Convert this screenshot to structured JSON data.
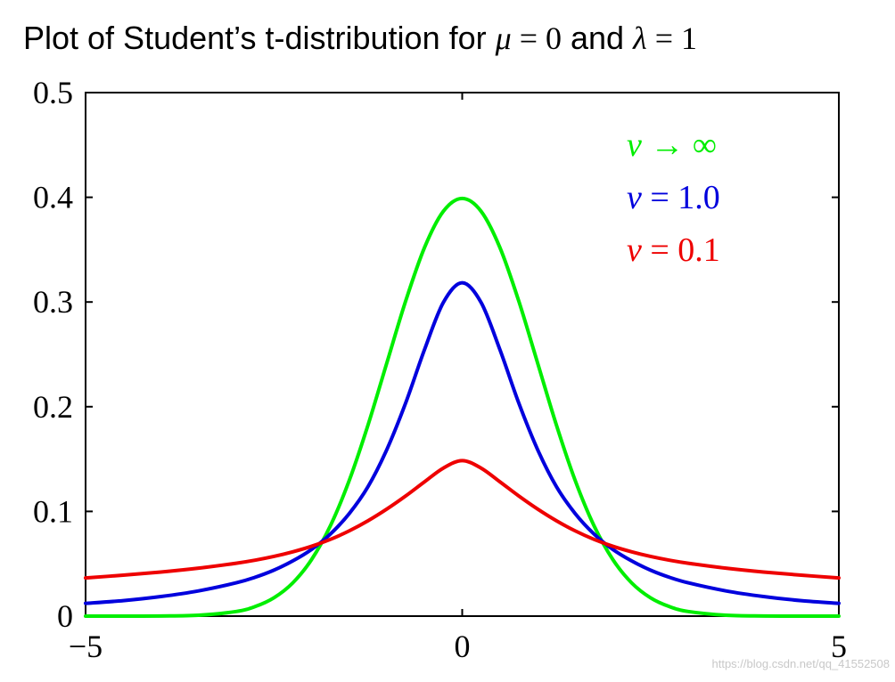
{
  "chart_data": {
    "type": "line",
    "title": {
      "prefix": "Plot of Student’s t-distribution for ",
      "mu_symbol": "μ",
      "mu_eq": " = 0",
      "conj": " and ",
      "lambda_symbol": "λ",
      "lambda_eq": " = 1"
    },
    "xlabel": "",
    "ylabel": "",
    "xlim": [
      -5,
      5
    ],
    "ylim": [
      0,
      0.5
    ],
    "x_ticks": [
      {
        "value": -5,
        "label": "−5"
      },
      {
        "value": 0,
        "label": "0"
      },
      {
        "value": 5,
        "label": "5"
      }
    ],
    "y_ticks": [
      {
        "value": 0,
        "label": "0"
      },
      {
        "value": 0.1,
        "label": "0.1"
      },
      {
        "value": 0.2,
        "label": "0.2"
      },
      {
        "value": 0.3,
        "label": "0.3"
      },
      {
        "value": 0.4,
        "label": "0.4"
      },
      {
        "value": 0.5,
        "label": "0.5"
      }
    ],
    "grid": false,
    "legend_position": "top-right",
    "series": [
      {
        "name": "ν → ∞",
        "legend_symbol": "ν",
        "legend_rest": " → ∞",
        "color": "#00ee00",
        "x": [
          -5,
          -4.5,
          -4,
          -3.5,
          -3,
          -2.75,
          -2.5,
          -2.25,
          -2,
          -1.75,
          -1.5,
          -1.25,
          -1,
          -0.75,
          -0.5,
          -0.25,
          0,
          0.25,
          0.5,
          0.75,
          1,
          1.25,
          1.5,
          1.75,
          2,
          2.25,
          2.5,
          2.75,
          3,
          3.5,
          4,
          4.5,
          5
        ],
        "y": [
          1.5e-06,
          1.6e-05,
          0.000134,
          0.00087,
          0.0044,
          0.0091,
          0.0175,
          0.0317,
          0.054,
          0.0863,
          0.1295,
          0.1826,
          0.242,
          0.3011,
          0.3521,
          0.3867,
          0.3989,
          0.3867,
          0.3521,
          0.3011,
          0.242,
          0.1826,
          0.1295,
          0.0863,
          0.054,
          0.0317,
          0.0175,
          0.0091,
          0.0044,
          0.00087,
          0.000134,
          1.6e-05,
          1.5e-06
        ]
      },
      {
        "name": "ν = 1.0",
        "legend_symbol": "ν",
        "legend_rest": " = 1.0",
        "color": "#0000dd",
        "x": [
          -5,
          -4.5,
          -4,
          -3.5,
          -3,
          -2.75,
          -2.5,
          -2.25,
          -2,
          -1.75,
          -1.5,
          -1.25,
          -1,
          -0.75,
          -0.5,
          -0.25,
          0,
          0.25,
          0.5,
          0.75,
          1,
          1.25,
          1.5,
          1.75,
          2,
          2.25,
          2.5,
          2.75,
          3,
          3.5,
          4,
          4.5,
          5
        ],
        "y": [
          0.0122,
          0.0148,
          0.0187,
          0.0241,
          0.0318,
          0.0371,
          0.0439,
          0.0527,
          0.0637,
          0.0784,
          0.0979,
          0.1237,
          0.1592,
          0.2037,
          0.2546,
          0.2996,
          0.3183,
          0.2996,
          0.2546,
          0.2037,
          0.1592,
          0.1237,
          0.0979,
          0.0784,
          0.0637,
          0.0527,
          0.0439,
          0.0371,
          0.0318,
          0.0241,
          0.0187,
          0.0148,
          0.0122
        ]
      },
      {
        "name": "ν = 0.1",
        "legend_symbol": "ν",
        "legend_rest": " = 0.1",
        "color": "#ee0000",
        "x": [
          -5,
          -4.5,
          -4,
          -3.5,
          -3,
          -2.75,
          -2.5,
          -2.25,
          -2,
          -1.75,
          -1.5,
          -1.25,
          -1,
          -0.75,
          -0.5,
          -0.25,
          0,
          0.25,
          0.5,
          0.75,
          1,
          1.25,
          1.5,
          1.75,
          2,
          2.25,
          2.5,
          2.75,
          3,
          3.5,
          4,
          4.5,
          5
        ],
        "y": [
          0.0365,
          0.0391,
          0.0421,
          0.0458,
          0.0505,
          0.0534,
          0.057,
          0.0614,
          0.0667,
          0.0733,
          0.0814,
          0.0911,
          0.1023,
          0.1148,
          0.1283,
          0.1414,
          0.1485,
          0.1414,
          0.1283,
          0.1148,
          0.1023,
          0.0911,
          0.0814,
          0.0733,
          0.0667,
          0.0614,
          0.057,
          0.0534,
          0.0505,
          0.0458,
          0.0421,
          0.0391,
          0.0365
        ]
      }
    ]
  },
  "watermark": "https://blog.csdn.net/qq_41552508"
}
